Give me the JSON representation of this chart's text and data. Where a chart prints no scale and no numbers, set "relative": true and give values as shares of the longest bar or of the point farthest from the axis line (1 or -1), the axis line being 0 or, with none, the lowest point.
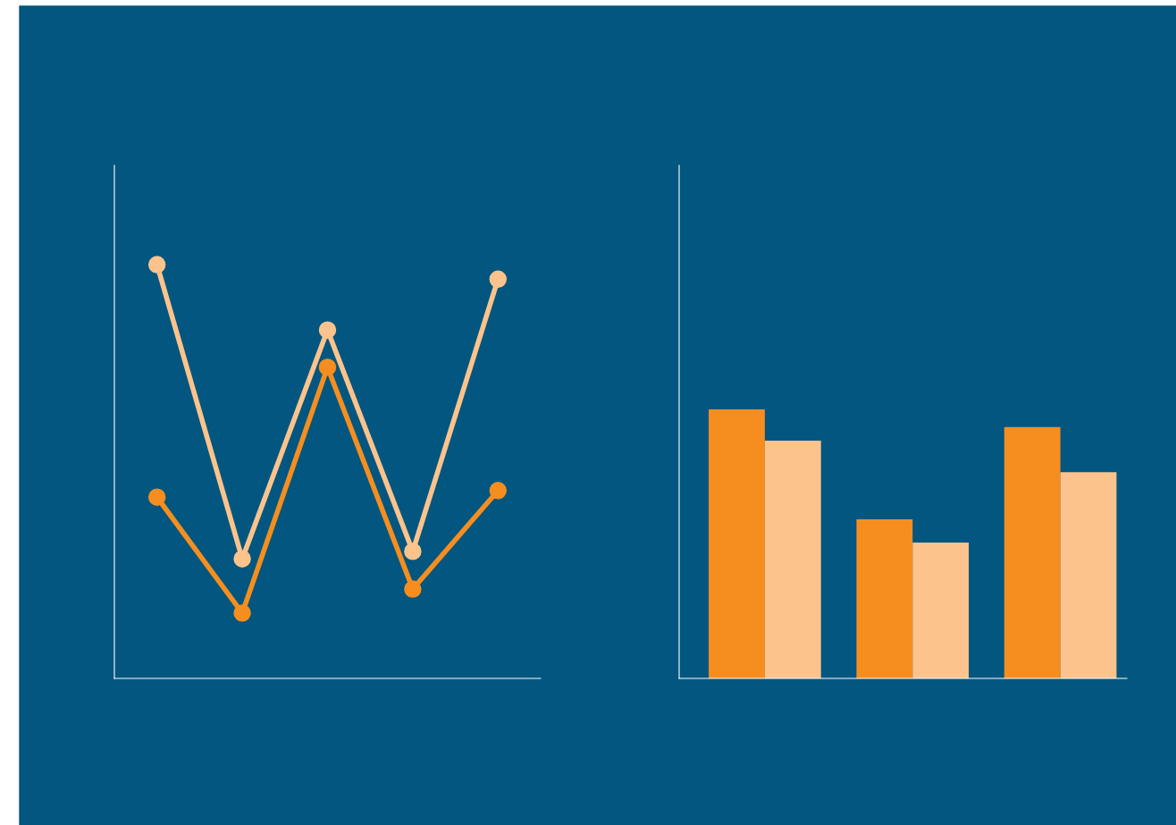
{
  "chart_data": [
    {
      "type": "line",
      "relative": true,
      "marker": "circle",
      "line_style": "solid",
      "legend": false,
      "categories": [
        null,
        null,
        null,
        null,
        null
      ],
      "series": [
        {
          "color": "#fdc38c",
          "values": [
            1,
            0.289,
            0.842,
            0.307,
            0.965
          ]
        },
        {
          "color": "#f68e1f",
          "values": [
            0.438,
            0.158,
            0.752,
            0.216,
            0.454
          ]
        }
      ]
    },
    {
      "type": "bar",
      "relative": true,
      "legend": false,
      "categories": [
        null,
        null,
        null
      ],
      "series": [
        {
          "color": "#f68e1f",
          "values": [
            1,
            0.591,
            0.934
          ]
        },
        {
          "color": "#fdc38c",
          "values": [
            0.884,
            0.505,
            0.767
          ]
        }
      ]
    }
  ]
}
